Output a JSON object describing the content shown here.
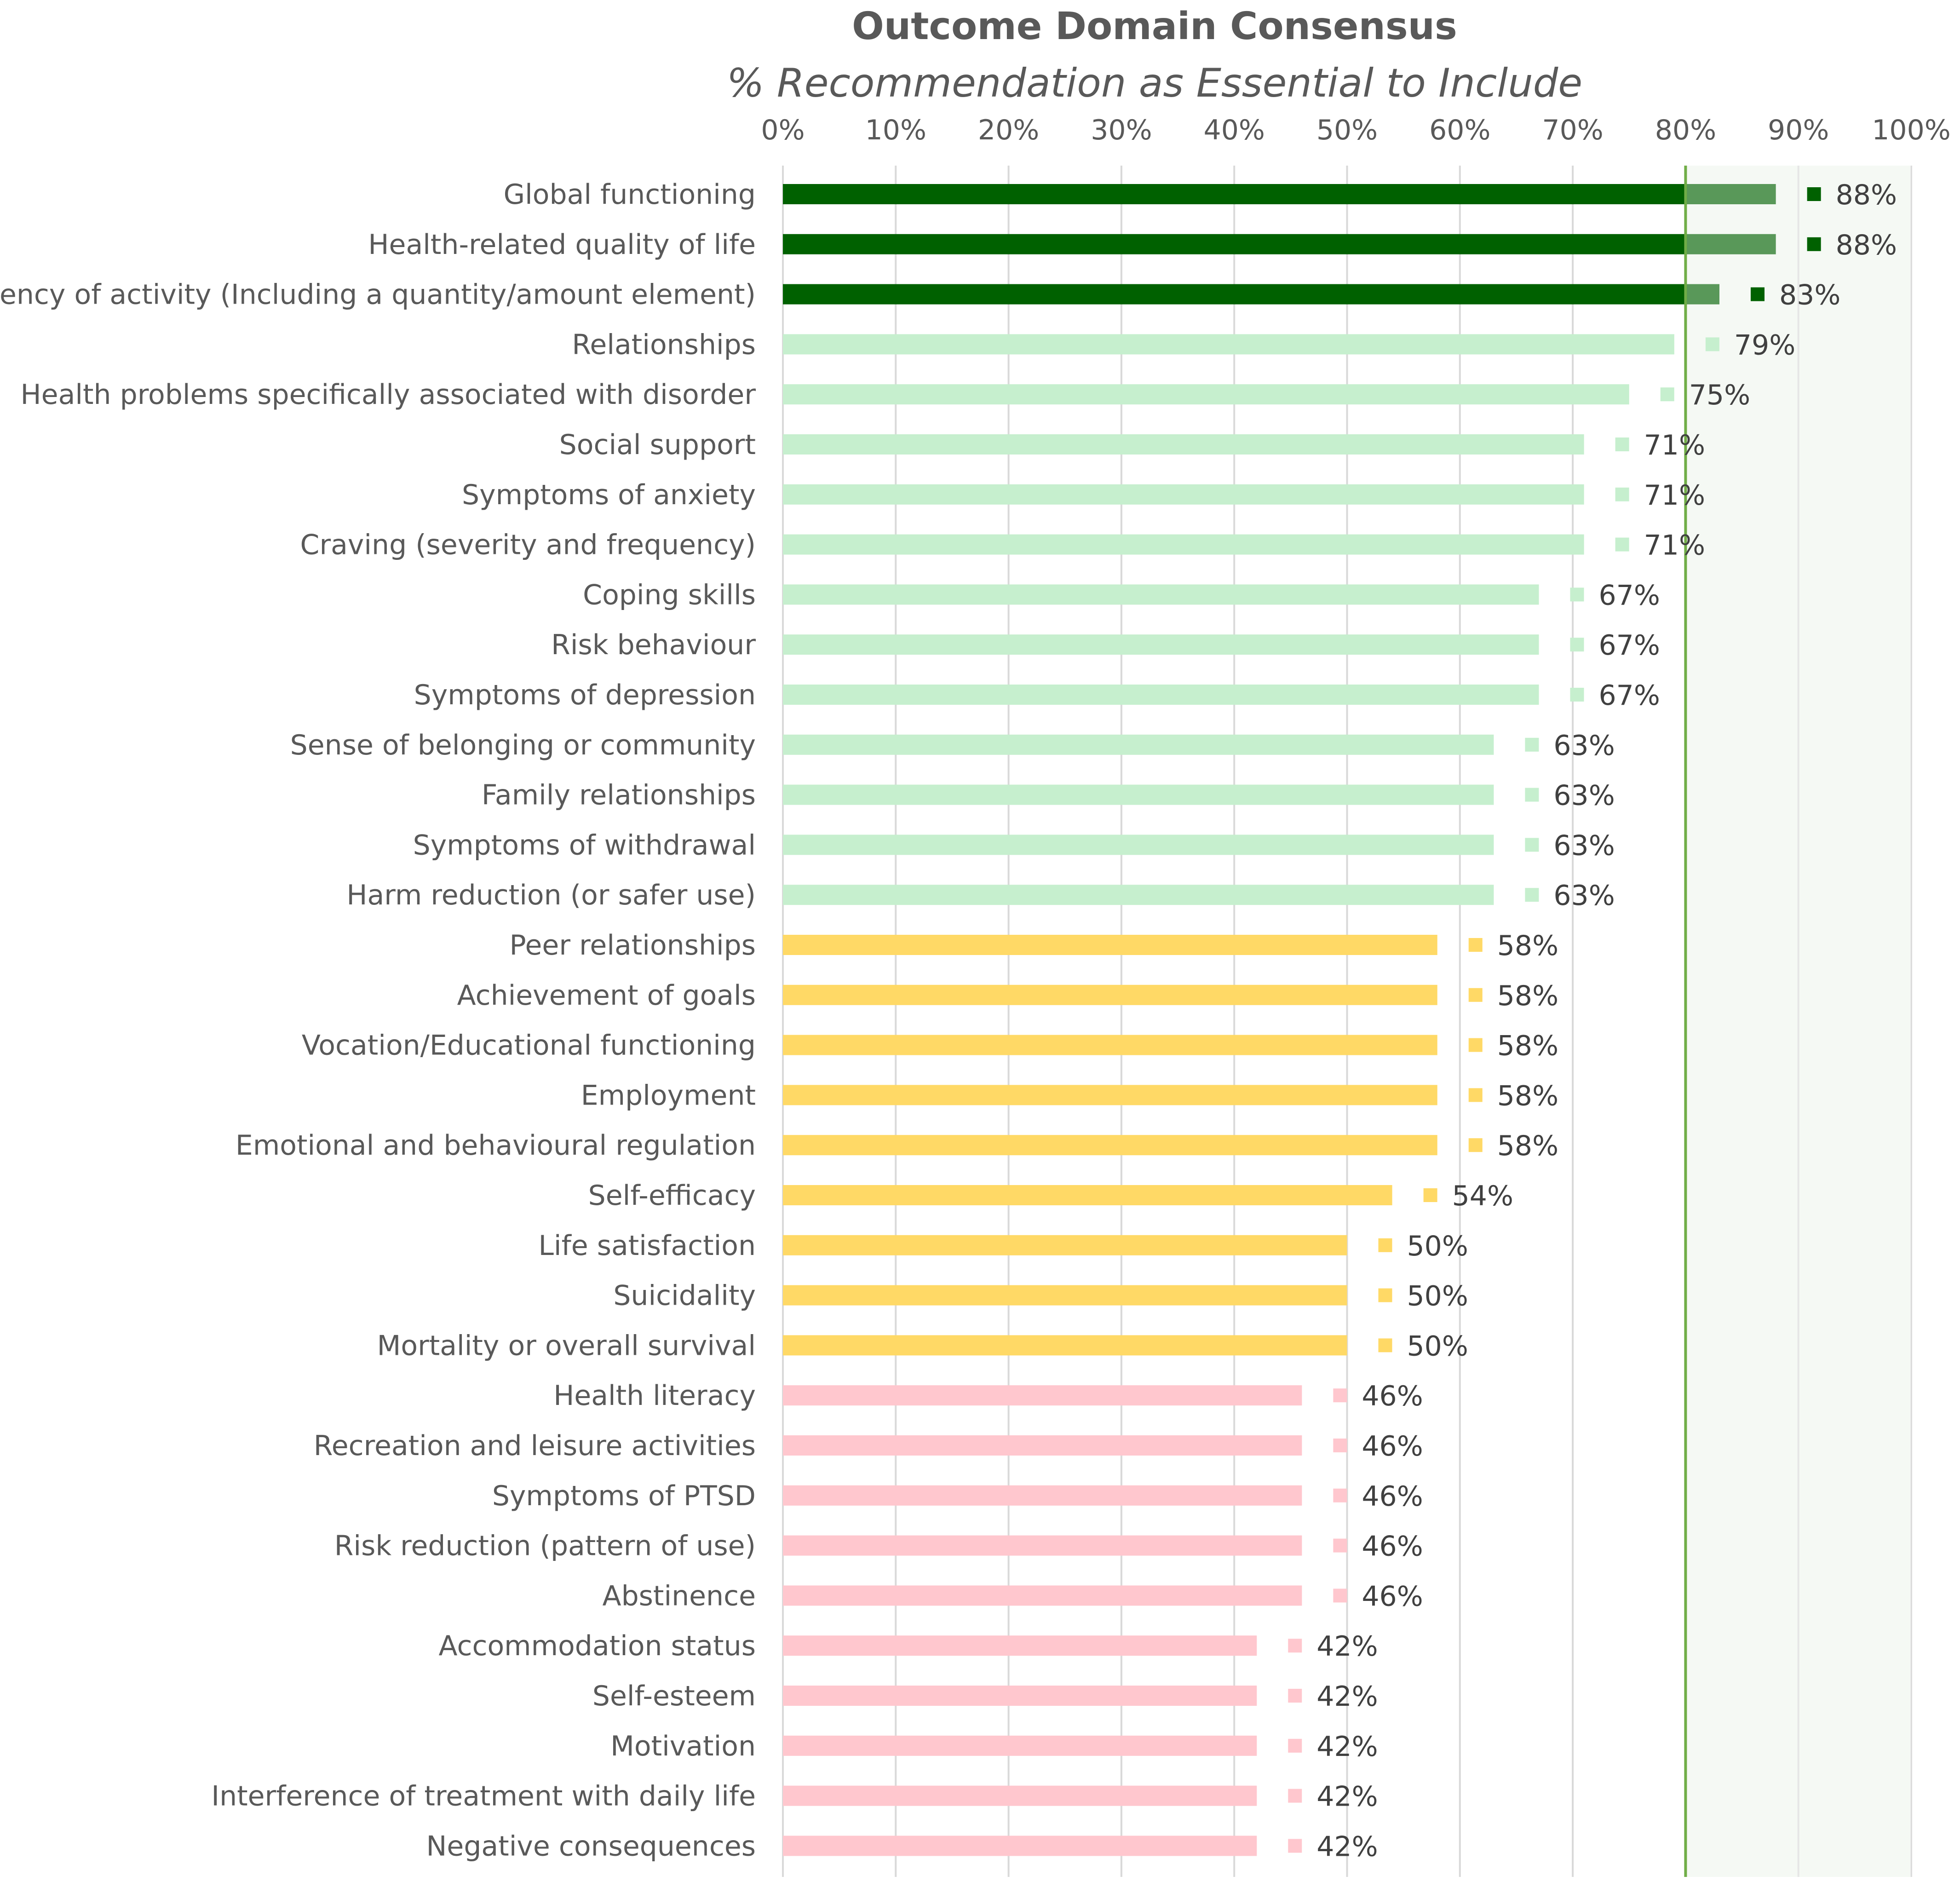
{
  "chart_data": {
    "type": "bar",
    "orientation": "horizontal",
    "title": "Outcome Domain Consensus",
    "subtitle": "% Recommendation as Essential to Include",
    "x_ticks": [
      "0%",
      "10%",
      "20%",
      "30%",
      "40%",
      "50%",
      "60%",
      "70%",
      "80%",
      "90%",
      "100%"
    ],
    "xlim": [
      0,
      100
    ],
    "x_axis_position": "top",
    "grid": true,
    "threshold": 80,
    "categories": [
      "Global functioning",
      "Health-related quality of life",
      "Frequency of activity (Including a quantity/amount element)",
      "Relationships",
      "Health problems specifically associated with disorder",
      "Social support",
      "Symptoms of anxiety",
      "Craving (severity and frequency)",
      "Coping skills",
      "Risk behaviour",
      "Symptoms of depression",
      "Sense of belonging or community",
      "Family relationships",
      "Symptoms of withdrawal",
      "Harm reduction (or safer use)",
      "Peer relationships",
      "Achievement of goals",
      "Vocation/Educational functioning",
      "Employment",
      "Emotional and behavioural regulation",
      "Self-efficacy",
      "Life satisfaction",
      "Suicidality",
      "Mortality or overall survival",
      "Health literacy",
      "Recreation and leisure activities",
      "Symptoms of PTSD",
      "Risk reduction (pattern of use)",
      "Abstinence",
      "Accommodation status",
      "Self-esteem",
      "Motivation",
      "Interference of treatment with daily life",
      "Negative consequences"
    ],
    "values": [
      88,
      88,
      83,
      79,
      75,
      71,
      71,
      71,
      67,
      67,
      67,
      63,
      63,
      63,
      63,
      58,
      58,
      58,
      58,
      58,
      54,
      50,
      50,
      50,
      46,
      46,
      46,
      46,
      46,
      42,
      42,
      42,
      42,
      42
    ],
    "value_labels": [
      "88%",
      "88%",
      "83%",
      "79%",
      "75%",
      "71%",
      "71%",
      "71%",
      "67%",
      "67%",
      "67%",
      "63%",
      "63%",
      "63%",
      "63%",
      "58%",
      "58%",
      "58%",
      "58%",
      "58%",
      "54%",
      "50%",
      "50%",
      "50%",
      "46%",
      "46%",
      "46%",
      "46%",
      "46%",
      "42%",
      "42%",
      "42%",
      "42%",
      "42%"
    ],
    "colors": {
      "high": "#006100",
      "medium": "#c6efce",
      "amber": "#ffd966",
      "low": "#ffc7ce",
      "consensus_zone": "#f0f6ee",
      "threshold_line": "#70ad47",
      "grid": "#d9d9d9",
      "text": "#595959"
    }
  }
}
